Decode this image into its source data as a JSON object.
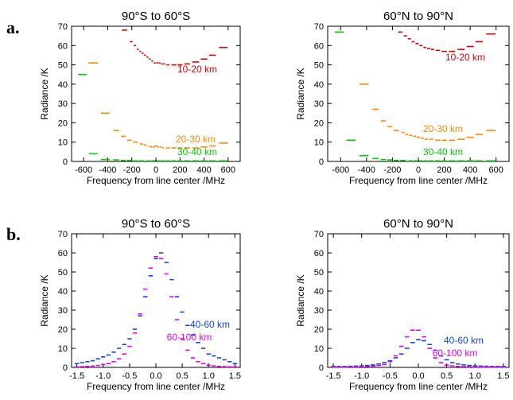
{
  "figure": {
    "label_a": "a.",
    "label_b": "b."
  },
  "chart_data": [
    {
      "type": "scatter",
      "title": "90°S to 60°S",
      "xlabel": "Frequency from line center /MHz",
      "ylabel": "Radiance /K",
      "xlim": [
        -700,
        700
      ],
      "ylim": [
        0,
        70
      ],
      "xticks": [
        "-600",
        "-400",
        "-200",
        "0",
        "200",
        "400",
        "600"
      ],
      "yticks": [
        "0",
        "10",
        "20",
        "30",
        "40",
        "50",
        "60",
        "70"
      ],
      "series": [
        {
          "name": "10-20 km",
          "color": "#dd0000",
          "x": [
            -260,
            -205,
            -175,
            -150,
            -130,
            -110,
            -90,
            -70,
            -50,
            -30,
            -10,
            10,
            30,
            50,
            70,
            100,
            150,
            200,
            260,
            330,
            400,
            470,
            560
          ],
          "y": [
            68,
            62,
            60,
            58,
            57,
            56,
            55,
            54,
            53,
            52,
            51,
            51,
            51,
            50.5,
            50.5,
            50,
            50,
            50,
            50.5,
            51.5,
            53,
            55,
            59
          ]
        },
        {
          "name": "20-30 km",
          "color": "#ff8800",
          "x": [
            -520,
            -420,
            -330,
            -270,
            -220,
            -170,
            -120,
            -90,
            -60,
            -40,
            -20,
            -5,
            5,
            20,
            40,
            60,
            100,
            150,
            200,
            260,
            330,
            400,
            470,
            560
          ],
          "y": [
            51,
            25,
            16,
            13,
            11,
            10,
            9,
            8.5,
            8,
            7.5,
            7.5,
            8,
            8,
            7.5,
            7.5,
            7,
            7,
            7,
            7,
            7,
            7,
            7.5,
            8,
            9.5
          ]
        },
        {
          "name": "30-40 km",
          "color": "#00cc00",
          "x": [
            -610,
            -520,
            -420,
            -330,
            -270,
            -220,
            -170,
            -120,
            -60,
            -20,
            20,
            60,
            100,
            150,
            200,
            260,
            330,
            400,
            470,
            560
          ],
          "y": [
            45,
            4,
            1,
            0.8,
            0.5,
            0.5,
            0.3,
            0.3,
            0.3,
            0.3,
            0.3,
            0.3,
            0.3,
            0.3,
            0.3,
            0.3,
            0.3,
            0.3,
            0.3,
            0.3
          ]
        }
      ]
    },
    {
      "type": "scatter",
      "title": "60°N to 90°N",
      "xlabel": "Frequency from line center /MHz",
      "ylabel": "Radiance /K",
      "xlim": [
        -700,
        700
      ],
      "ylim": [
        0,
        70
      ],
      "xticks": [
        "-600",
        "-400",
        "-200",
        "0",
        "200",
        "400",
        "600"
      ],
      "yticks": [
        "0",
        "10",
        "20",
        "30",
        "40",
        "50",
        "60",
        "70"
      ],
      "series": [
        {
          "name": "10-20 km",
          "color": "#dd0000",
          "x": [
            -140,
            -100,
            -70,
            -40,
            -10,
            20,
            50,
            80,
            110,
            150,
            200,
            260,
            330,
            400,
            470,
            560
          ],
          "y": [
            67,
            65,
            63.5,
            62,
            61,
            60,
            59,
            58.5,
            58,
            57.5,
            57,
            57,
            58,
            59.5,
            62,
            66
          ]
        },
        {
          "name": "20-30 km",
          "color": "#ff8800",
          "x": [
            -420,
            -330,
            -270,
            -220,
            -170,
            -120,
            -90,
            -60,
            -30,
            0,
            30,
            60,
            100,
            150,
            200,
            260,
            330,
            400,
            470,
            560
          ],
          "y": [
            40,
            27,
            21,
            18,
            16,
            15,
            14,
            13.5,
            13,
            12.5,
            12,
            11.5,
            11.5,
            11,
            11,
            11,
            11.5,
            12.5,
            14,
            16
          ]
        },
        {
          "name": "30-40 km",
          "color": "#00cc00",
          "x": [
            -610,
            -520,
            -420,
            -330,
            -270,
            -220,
            -170,
            -120,
            -60,
            -20,
            20,
            60,
            100,
            150,
            200,
            260,
            330,
            400,
            470,
            560
          ],
          "y": [
            67,
            11,
            3,
            1.5,
            1,
            0.8,
            0.5,
            0.5,
            0.3,
            0.3,
            0.3,
            0.3,
            0.3,
            0.3,
            0.3,
            0.3,
            0.3,
            0.3,
            0.3,
            0.3
          ]
        }
      ]
    },
    {
      "type": "scatter",
      "title": "90°S to 60°S",
      "xlabel": "Frequency from line center /MHz",
      "ylabel": "Radiance /K",
      "xlim": [
        -1.6,
        1.6
      ],
      "ylim": [
        0,
        70
      ],
      "xticks": [
        "-1.5",
        "-1.0",
        "-0.5",
        "0.0",
        "0.5",
        "1.0",
        "1.5"
      ],
      "yticks": [
        "0",
        "10",
        "20",
        "30",
        "40",
        "50",
        "60",
        "70"
      ],
      "series": [
        {
          "name": "40-60 km",
          "color": "#1144ee",
          "x": [
            -1.5,
            -1.4,
            -1.3,
            -1.2,
            -1.1,
            -1.0,
            -0.9,
            -0.8,
            -0.7,
            -0.6,
            -0.5,
            -0.4,
            -0.3,
            -0.2,
            -0.1,
            0.0,
            0.1,
            0.2,
            0.3,
            0.4,
            0.5,
            0.6,
            0.7,
            0.8,
            0.9,
            1.0,
            1.1,
            1.2,
            1.3,
            1.4,
            1.5
          ],
          "y": [
            2,
            2.5,
            3,
            3.5,
            4.5,
            5.5,
            6.5,
            8,
            10,
            12,
            15,
            20,
            27,
            37,
            48,
            57,
            60,
            55,
            46,
            37,
            29,
            22,
            17,
            13,
            10,
            7,
            6,
            5,
            4,
            3,
            2
          ]
        },
        {
          "name": "60-100 km",
          "color": "#ee00ee",
          "x": [
            -1.5,
            -1.4,
            -1.3,
            -1.2,
            -1.1,
            -1.0,
            -0.9,
            -0.8,
            -0.7,
            -0.6,
            -0.5,
            -0.4,
            -0.3,
            -0.2,
            -0.1,
            0.0,
            0.1,
            0.2,
            0.3,
            0.4,
            0.5,
            0.6,
            0.7,
            0.8,
            0.9,
            1.0,
            1.1,
            1.2,
            1.3,
            1.4,
            1.5
          ],
          "y": [
            0.3,
            0.4,
            0.5,
            0.7,
            1,
            1.5,
            2,
            3,
            4.5,
            7,
            11,
            18,
            28,
            41,
            52,
            58,
            57,
            49,
            37,
            25,
            15,
            9,
            5,
            3,
            2,
            1.2,
            0.8,
            0.5,
            0.4,
            0.3,
            0.3
          ]
        }
      ]
    },
    {
      "type": "scatter",
      "title": "60°N to 90°N",
      "xlabel": "Frequency from line center /MHz",
      "ylabel": "Radiance /K",
      "xlim": [
        -1.6,
        1.6
      ],
      "ylim": [
        0,
        70
      ],
      "xticks": [
        "-1.5",
        "-1.0",
        "-0.5",
        "0.0",
        "0.5",
        "1.0",
        "1.5"
      ],
      "yticks": [
        "0",
        "10",
        "20",
        "30",
        "40",
        "50",
        "60",
        "70"
      ],
      "series": [
        {
          "name": "40-60 km",
          "color": "#1144ee",
          "x": [
            -1.5,
            -1.4,
            -1.3,
            -1.2,
            -1.1,
            -1.0,
            -0.9,
            -0.8,
            -0.7,
            -0.6,
            -0.5,
            -0.4,
            -0.3,
            -0.2,
            -0.1,
            0.0,
            0.1,
            0.2,
            0.3,
            0.4,
            0.5,
            0.6,
            0.7,
            0.8,
            0.9,
            1.0,
            1.1,
            1.2,
            1.3,
            1.4,
            1.5
          ],
          "y": [
            0.5,
            0.5,
            0.5,
            0.6,
            0.7,
            0.8,
            1,
            1.3,
            1.8,
            2.5,
            3.5,
            5,
            7,
            10,
            13,
            14.5,
            14,
            12,
            9,
            6,
            4,
            2.5,
            1.8,
            1.3,
            1,
            0.8,
            0.7,
            0.6,
            0.5,
            0.5,
            0.5
          ]
        },
        {
          "name": "60-100 km",
          "color": "#ee00ee",
          "x": [
            -1.5,
            -1.4,
            -1.3,
            -1.2,
            -1.1,
            -1.0,
            -0.9,
            -0.8,
            -0.7,
            -0.6,
            -0.5,
            -0.4,
            -0.3,
            -0.2,
            -0.1,
            0.0,
            0.1,
            0.2,
            0.3,
            0.4,
            0.5,
            0.6,
            0.7,
            0.8,
            0.9,
            1.0,
            1.1,
            1.2,
            1.3,
            1.4,
            1.5
          ],
          "y": [
            0.2,
            0.2,
            0.2,
            0.3,
            0.3,
            0.4,
            0.5,
            0.7,
            1,
            1.5,
            3,
            6,
            11,
            16,
            19.5,
            19.5,
            16,
            10,
            5,
            2.5,
            1.2,
            0.8,
            0.5,
            0.4,
            0.3,
            0.3,
            0.2,
            0.2,
            0.2,
            0.2,
            0.2
          ]
        }
      ]
    }
  ]
}
